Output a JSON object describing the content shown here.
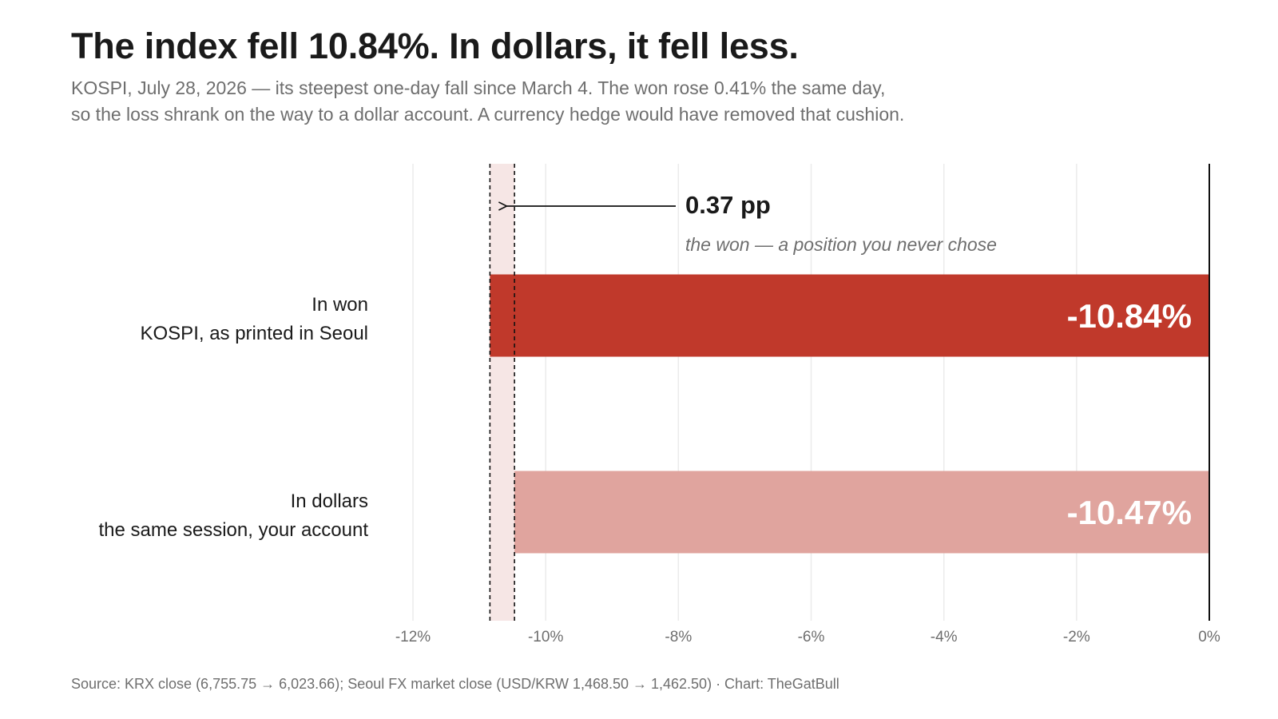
{
  "title": "The index fell 10.84%. In dollars, it fell less.",
  "subtitle": {
    "line1": "KOSPI, July 28, 2026 — its steepest one-day fall since March 4. The won rose 0.41% the same day,",
    "line2": "so the loss shrank on the way to a dollar account. A currency hedge would have removed that cushion."
  },
  "source": "Source: KRX close (6,755.75 → 6,023.66); Seoul FX market close (USD/KRW 1,468.50 → 1,462.50)  ·  Chart: TheGatBull",
  "colors": {
    "won_bar": "#c0392b",
    "dollar_bar": "#e0a49e",
    "gap_band": "#f6e6e5",
    "grid": "#ebebeb",
    "zero_line": "#111111",
    "tick_text": "#6e6e6e"
  },
  "chart_data": {
    "type": "bar",
    "orientation": "horizontal",
    "categories": [
      {
        "label": "In won",
        "sublabel": "KOSPI, as printed in Seoul"
      },
      {
        "label": "In dollars",
        "sublabel": "the same session, your account"
      }
    ],
    "values": [
      -10.84,
      -10.47
    ],
    "value_labels": [
      "-10.84%",
      "-10.47%"
    ],
    "xlim": [
      -12,
      0
    ],
    "xticks": [
      -12,
      -10,
      -8,
      -6,
      -4,
      -2,
      0
    ],
    "xtick_labels": [
      "-12%",
      "-10%",
      "-8%",
      "-6%",
      "-4%",
      "-2%",
      "0%"
    ],
    "grid": true,
    "annotation": {
      "gap_from": -10.84,
      "gap_to": -10.47,
      "label": "0.37 pp",
      "sublabel": "the won — a position you never chose"
    }
  }
}
